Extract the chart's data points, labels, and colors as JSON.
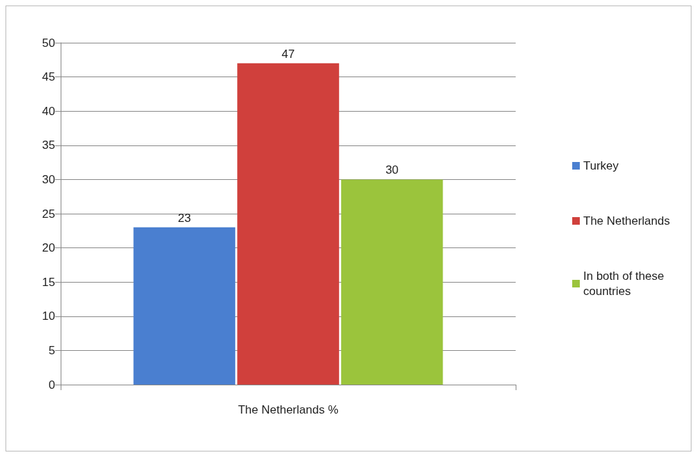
{
  "chart_data": {
    "type": "bar",
    "categories": [
      "The Netherlands %"
    ],
    "series": [
      {
        "name": "Turkey",
        "color": "#4a7fd0",
        "values": [
          23
        ]
      },
      {
        "name": "The Netherlands",
        "color": "#d0403c",
        "values": [
          47
        ]
      },
      {
        "name": "In both of these countries",
        "color": "#9bc43c",
        "values": [
          30
        ]
      }
    ],
    "ylim": [
      0,
      50
    ],
    "yticks": [
      0,
      5,
      10,
      15,
      20,
      25,
      30,
      35,
      40,
      45,
      50
    ],
    "grid": "y",
    "legend": "right",
    "data_labels": true
  }
}
